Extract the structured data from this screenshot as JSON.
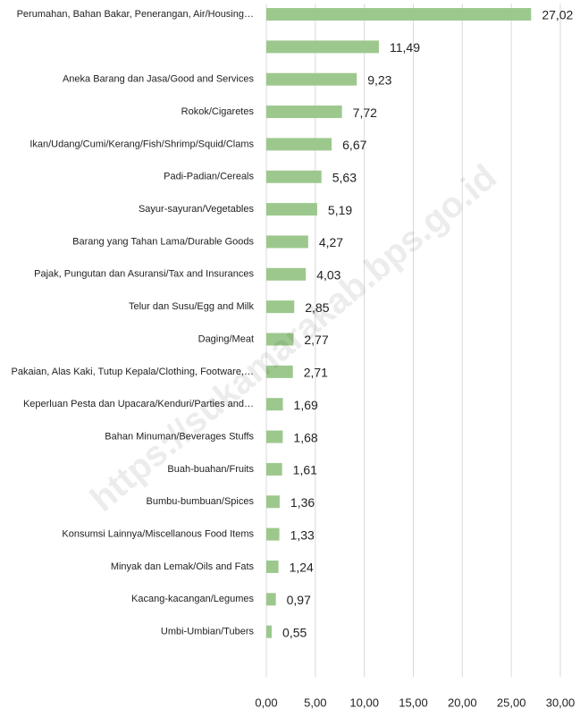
{
  "chart_data": {
    "type": "hbar",
    "watermark": "https://sukamarakab.bps.go.id",
    "color": "#9dc88d",
    "categories": [
      "Perumahan, Bahan Bakar, Penerangan, Air/Housing…",
      null,
      "Aneka Barang dan Jasa/Good and Services",
      "Rokok/Cigaretes",
      "Ikan/Udang/Cumi/Kerang/Fish/Shrimp/Squid/Clams",
      "Padi-Padian/Cereals",
      "Sayur-sayuran/Vegetables",
      "Barang yang Tahan Lama/Durable Goods",
      "Pajak, Pungutan dan Asuransi/Tax and Insurances",
      "Telur dan Susu/Egg and Milk",
      "Daging/Meat",
      "Pakaian, Alas Kaki, Tutup Kepala/Clothing, Footware,…",
      "Keperluan Pesta dan Upacara/Kenduri/Parties and…",
      "Bahan Minuman/Beverages Stuffs",
      "Buah-buahan/Fruits",
      "Bumbu-bumbuan/Spices",
      "Konsumsi Lainnya/Miscellanous Food Items",
      "Minyak dan Lemak/Oils and Fats",
      "Kacang-kacangan/Legumes",
      "Umbi-Umbian/Tubers"
    ],
    "values": [
      27.02,
      11.49,
      9.23,
      7.72,
      6.67,
      5.63,
      5.19,
      4.27,
      4.03,
      2.85,
      2.77,
      2.71,
      1.69,
      1.68,
      1.61,
      1.36,
      1.33,
      1.24,
      0.97,
      0.55
    ],
    "value_labels": [
      "27,02",
      "11,49",
      "9,23",
      "7,72",
      "6,67",
      "5,63",
      "5,19",
      "4,27",
      "4,03",
      "2,85",
      "2,77",
      "2,71",
      "1,69",
      "1,68",
      "1,61",
      "1,36",
      "1,33",
      "1,24",
      "0,97",
      "0,55"
    ],
    "xlim": [
      0,
      30
    ],
    "xticks": [
      {
        "value": 0,
        "label": "0,00"
      },
      {
        "value": 5,
        "label": "5,00"
      },
      {
        "value": 10,
        "label": "10,00"
      },
      {
        "value": 15,
        "label": "15,00"
      },
      {
        "value": 20,
        "label": "20,00"
      },
      {
        "value": 25,
        "label": "25,00"
      },
      {
        "value": 30,
        "label": "30,00"
      }
    ],
    "grid": true
  }
}
